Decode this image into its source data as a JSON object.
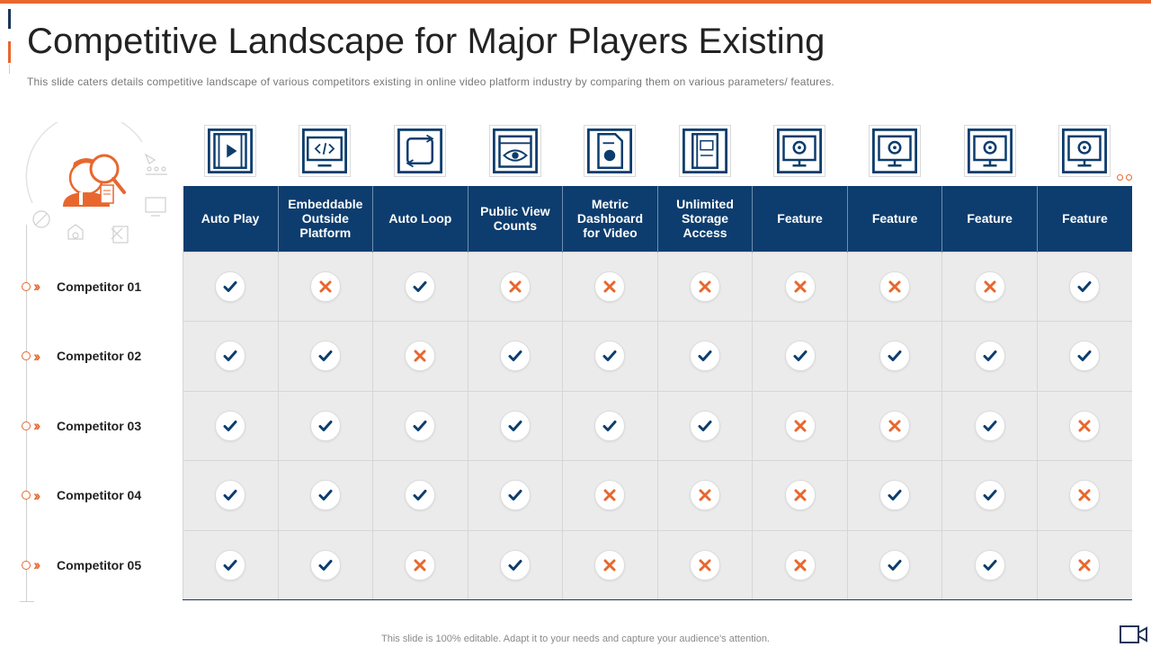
{
  "slide": {
    "title": "Competitive Landscape for Major Players Existing",
    "subtitle": "This slide caters details competitive landscape of various  competitors existing in online video platform industry by comparing them on various parameters/ features.",
    "footer": "This slide is 100% editable.  Adapt it to your needs and capture your audience's attention."
  },
  "colors": {
    "accent": "#e8672e",
    "header_bg": "#0d3d6e",
    "check": "#0d3d6e",
    "cross": "#e8672e",
    "cell_bg": "#ebebeb"
  },
  "features": [
    {
      "label": "Auto Play",
      "icon": "video-play-icon"
    },
    {
      "label": "Embeddable Outside Platform",
      "icon": "code-monitor-icon"
    },
    {
      "label": "Auto Loop",
      "icon": "loop-icon"
    },
    {
      "label": "Public View Counts",
      "icon": "calendar-eye-icon"
    },
    {
      "label": "Metric Dashboard for Video",
      "icon": "document-chart-icon"
    },
    {
      "label": "Unlimited Storage Access",
      "icon": "book-storage-icon"
    },
    {
      "label": "Feature",
      "icon": "monitor-settings-icon"
    },
    {
      "label": "Feature",
      "icon": "monitor-settings-icon"
    },
    {
      "label": "Feature",
      "icon": "monitor-settings-icon"
    },
    {
      "label": "Feature",
      "icon": "monitor-settings-icon"
    }
  ],
  "competitors": [
    {
      "name": "Competitor 01",
      "marks": [
        "check",
        "cross",
        "check",
        "cross",
        "cross",
        "cross",
        "cross",
        "cross",
        "cross",
        "check"
      ]
    },
    {
      "name": "Competitor 02",
      "marks": [
        "check",
        "check",
        "cross",
        "check",
        "check",
        "check",
        "check",
        "check",
        "check",
        "check"
      ]
    },
    {
      "name": "Competitor 03",
      "marks": [
        "check",
        "check",
        "check",
        "check",
        "check",
        "check",
        "cross",
        "cross",
        "check",
        "cross"
      ]
    },
    {
      "name": "Competitor 04",
      "marks": [
        "check",
        "check",
        "check",
        "check",
        "cross",
        "cross",
        "cross",
        "check",
        "check",
        "cross"
      ]
    },
    {
      "name": "Competitor 05",
      "marks": [
        "check",
        "check",
        "cross",
        "check",
        "cross",
        "cross",
        "cross",
        "check",
        "check",
        "cross"
      ]
    }
  ],
  "illustration_icon": "person-magnifier-icon",
  "corner_icon": "video-camera-icon"
}
